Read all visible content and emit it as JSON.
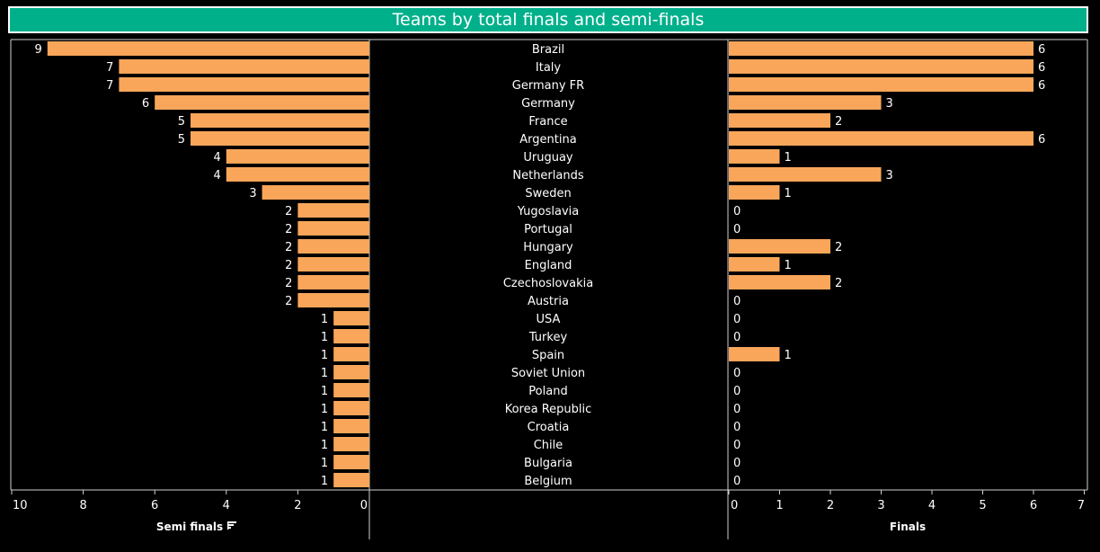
{
  "title": "Teams by total finals and semi-finals",
  "colors": {
    "bar": "#f9a65a",
    "background": "#000000",
    "header": "#00b08b",
    "text": "#ffffff"
  },
  "chart_data": [
    {
      "type": "bar",
      "orientation": "horizontal",
      "direction": "reversed",
      "xlabel": "Semi finals",
      "xlabel_icon": "sort-descending-icon",
      "xlim": [
        10,
        0
      ],
      "ticks": [
        "10",
        "8",
        "6",
        "4",
        "2",
        "0"
      ],
      "categories": [
        "Brazil",
        "Italy",
        "Germany FR",
        "Germany",
        "France",
        "Argentina",
        "Uruguay",
        "Netherlands",
        "Sweden",
        "Yugoslavia",
        "Portugal",
        "Hungary",
        "England",
        "Czechoslovakia",
        "Austria",
        "USA",
        "Turkey",
        "Spain",
        "Soviet Union",
        "Poland",
        "Korea Republic",
        "Croatia",
        "Chile",
        "Bulgaria",
        "Belgium"
      ],
      "values": [
        9,
        7,
        7,
        6,
        5,
        5,
        4,
        4,
        3,
        2,
        2,
        2,
        2,
        2,
        2,
        1,
        1,
        1,
        1,
        1,
        1,
        1,
        1,
        1,
        1
      ]
    },
    {
      "type": "bar",
      "orientation": "horizontal",
      "xlabel": "Finals",
      "xlim": [
        0,
        7
      ],
      "ticks": [
        "0",
        "1",
        "2",
        "3",
        "4",
        "5",
        "6",
        "7"
      ],
      "categories": [
        "Brazil",
        "Italy",
        "Germany FR",
        "Germany",
        "France",
        "Argentina",
        "Uruguay",
        "Netherlands",
        "Sweden",
        "Yugoslavia",
        "Portugal",
        "Hungary",
        "England",
        "Czechoslovakia",
        "Austria",
        "USA",
        "Turkey",
        "Spain",
        "Soviet Union",
        "Poland",
        "Korea Republic",
        "Croatia",
        "Chile",
        "Bulgaria",
        "Belgium"
      ],
      "values": [
        6,
        6,
        6,
        3,
        2,
        6,
        1,
        3,
        1,
        0,
        0,
        2,
        1,
        2,
        0,
        0,
        0,
        1,
        0,
        0,
        0,
        0,
        0,
        0,
        0
      ]
    }
  ]
}
